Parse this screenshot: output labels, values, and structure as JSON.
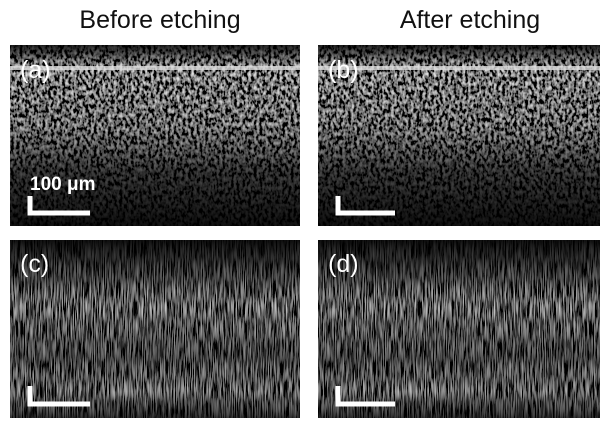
{
  "headers": [
    "Before etching",
    "After etching"
  ],
  "panels": [
    {
      "label": "(a)"
    },
    {
      "label": "(b)"
    },
    {
      "label": "(c)"
    },
    {
      "label": "(d)"
    }
  ],
  "scale_bar": {
    "label": "100 μm"
  }
}
